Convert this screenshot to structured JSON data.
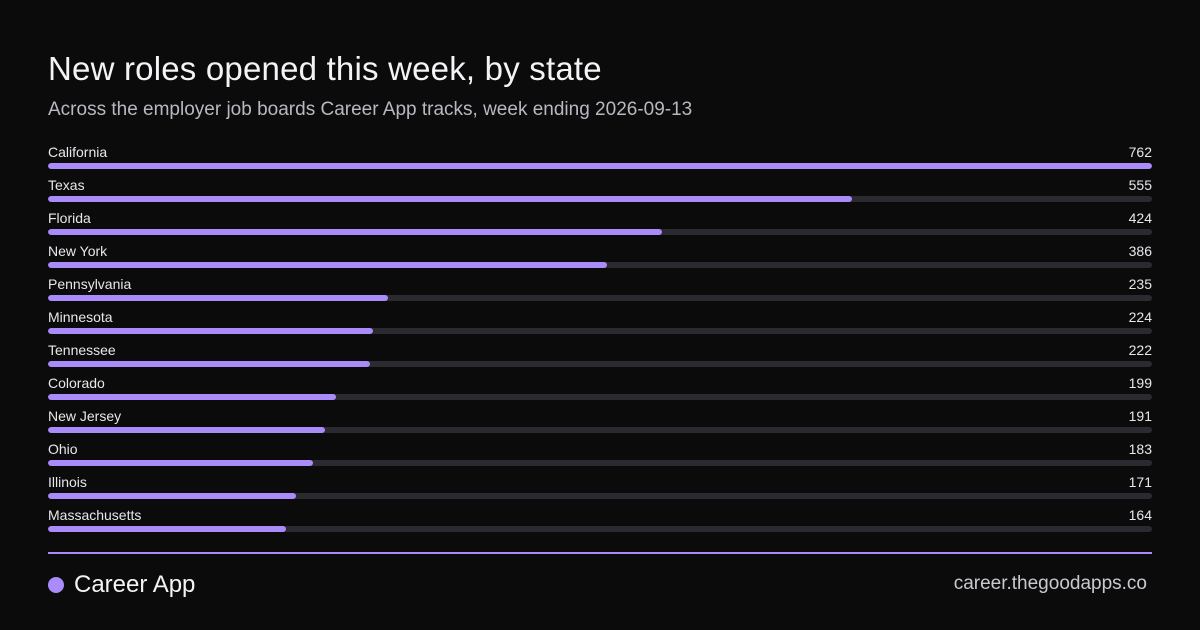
{
  "header": {
    "title": "New roles opened this week, by state",
    "subtitle": "Across the employer job boards Career App tracks, week ending 2026-09-13"
  },
  "footer": {
    "brand": "Career App",
    "url": "career.thegoodapps.co"
  },
  "colors": {
    "accent": "#a98bfa",
    "track": "#2a2a30",
    "background": "#0b0b0c"
  },
  "chart_data": {
    "type": "bar",
    "orientation": "horizontal",
    "xlim": [
      0,
      762
    ],
    "categories": [
      "California",
      "Texas",
      "Florida",
      "New York",
      "Pennsylvania",
      "Minnesota",
      "Tennessee",
      "Colorado",
      "New Jersey",
      "Ohio",
      "Illinois",
      "Massachusetts"
    ],
    "values": [
      762,
      555,
      424,
      386,
      235,
      224,
      222,
      199,
      191,
      183,
      171,
      164
    ],
    "value_labels": [
      "762",
      "555",
      "424",
      "386",
      "235",
      "224",
      "222",
      "199",
      "191",
      "183",
      "171",
      "164"
    ]
  }
}
